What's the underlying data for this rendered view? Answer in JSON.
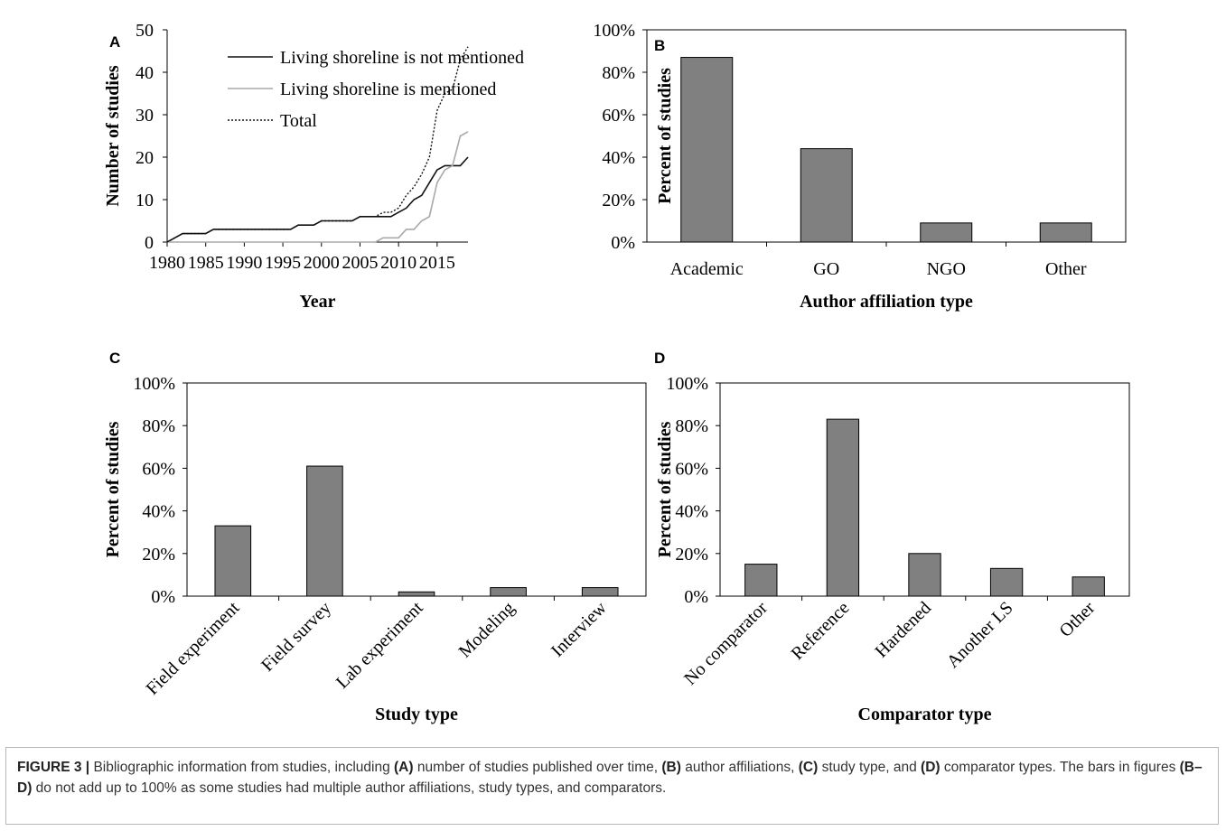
{
  "chart_data": [
    {
      "type": "line",
      "panel_letter": "A",
      "xlabel": "Year",
      "ylabel": "Number of studies",
      "xlim": [
        1980,
        2019
      ],
      "ylim": [
        0,
        50
      ],
      "xticks": [
        "1980",
        "1985",
        "1990",
        "1995",
        "2000",
        "2005",
        "2010",
        "2015"
      ],
      "yticks": [
        "0",
        "10",
        "20",
        "30",
        "40",
        "50"
      ],
      "legend_position": "top-left",
      "series": [
        {
          "name": "Living shoreline is not mentioned",
          "style": "solid-black",
          "points": [
            [
              1980,
              0
            ],
            [
              1981,
              1
            ],
            [
              1982,
              2
            ],
            [
              1983,
              2
            ],
            [
              1984,
              2
            ],
            [
              1985,
              2
            ],
            [
              1986,
              3
            ],
            [
              1987,
              3
            ],
            [
              1988,
              3
            ],
            [
              1989,
              3
            ],
            [
              1990,
              3
            ],
            [
              1991,
              3
            ],
            [
              1992,
              3
            ],
            [
              1993,
              3
            ],
            [
              1994,
              3
            ],
            [
              1995,
              3
            ],
            [
              1996,
              3
            ],
            [
              1997,
              4
            ],
            [
              1998,
              4
            ],
            [
              1999,
              4
            ],
            [
              2000,
              5
            ],
            [
              2001,
              5
            ],
            [
              2002,
              5
            ],
            [
              2003,
              5
            ],
            [
              2004,
              5
            ],
            [
              2005,
              6
            ],
            [
              2006,
              6
            ],
            [
              2007,
              6
            ],
            [
              2008,
              6
            ],
            [
              2009,
              6
            ],
            [
              2010,
              7
            ],
            [
              2011,
              8
            ],
            [
              2012,
              10
            ],
            [
              2013,
              11
            ],
            [
              2014,
              14
            ],
            [
              2015,
              17
            ],
            [
              2016,
              18
            ],
            [
              2017,
              18
            ],
            [
              2018,
              18
            ],
            [
              2019,
              20
            ]
          ]
        },
        {
          "name": "Living shoreline is mentioned",
          "style": "solid-gray",
          "points": [
            [
              1980,
              0
            ],
            [
              2007,
              0
            ],
            [
              2008,
              1
            ],
            [
              2009,
              1
            ],
            [
              2010,
              1
            ],
            [
              2011,
              3
            ],
            [
              2012,
              3
            ],
            [
              2013,
              5
            ],
            [
              2014,
              6
            ],
            [
              2015,
              14
            ],
            [
              2016,
              17
            ],
            [
              2017,
              18
            ],
            [
              2018,
              25
            ],
            [
              2019,
              26
            ]
          ]
        },
        {
          "name": "Total",
          "style": "dotted-black",
          "points": [
            [
              1980,
              0
            ],
            [
              1981,
              1
            ],
            [
              1982,
              2
            ],
            [
              1983,
              2
            ],
            [
              1984,
              2
            ],
            [
              1985,
              2
            ],
            [
              1986,
              3
            ],
            [
              1987,
              3
            ],
            [
              1988,
              3
            ],
            [
              1989,
              3
            ],
            [
              1990,
              3
            ],
            [
              1991,
              3
            ],
            [
              1992,
              3
            ],
            [
              1993,
              3
            ],
            [
              1994,
              3
            ],
            [
              1995,
              3
            ],
            [
              1996,
              3
            ],
            [
              1997,
              4
            ],
            [
              1998,
              4
            ],
            [
              1999,
              4
            ],
            [
              2000,
              5
            ],
            [
              2001,
              5
            ],
            [
              2002,
              5
            ],
            [
              2003,
              5
            ],
            [
              2004,
              5
            ],
            [
              2005,
              6
            ],
            [
              2006,
              6
            ],
            [
              2007,
              6
            ],
            [
              2008,
              7
            ],
            [
              2009,
              7
            ],
            [
              2010,
              8
            ],
            [
              2011,
              11
            ],
            [
              2012,
              13
            ],
            [
              2013,
              16
            ],
            [
              2014,
              20
            ],
            [
              2015,
              31
            ],
            [
              2016,
              35
            ],
            [
              2017,
              36
            ],
            [
              2018,
              43
            ],
            [
              2019,
              46
            ]
          ]
        }
      ]
    },
    {
      "type": "bar",
      "panel_letter": "B",
      "xlabel": "Author affiliation type",
      "ylabel": "Percent of studies",
      "ylim": [
        0,
        100
      ],
      "yticks": [
        "0%",
        "20%",
        "40%",
        "60%",
        "80%",
        "100%"
      ],
      "categories": [
        "Academic",
        "GO",
        "NGO",
        "Other"
      ],
      "values": [
        87,
        44,
        9,
        9
      ],
      "bar_color": "#808080"
    },
    {
      "type": "bar",
      "panel_letter": "C",
      "xlabel": "Study type",
      "ylabel": "Percent of studies",
      "ylim": [
        0,
        100
      ],
      "yticks": [
        "0%",
        "20%",
        "40%",
        "60%",
        "80%",
        "100%"
      ],
      "categories": [
        "Field experiment",
        "Field survey",
        "Lab experiment",
        "Modeling",
        "Interview"
      ],
      "values": [
        33,
        61,
        2,
        4,
        4
      ],
      "bar_color": "#808080"
    },
    {
      "type": "bar",
      "panel_letter": "D",
      "xlabel": "Comparator type",
      "ylabel": "Percent of studies",
      "ylim": [
        0,
        100
      ],
      "yticks": [
        "0%",
        "20%",
        "40%",
        "60%",
        "80%",
        "100%"
      ],
      "categories": [
        "No comparator",
        "Reference",
        "Hardened",
        "Another LS",
        "Other"
      ],
      "values": [
        15,
        83,
        20,
        13,
        9
      ],
      "bar_color": "#808080"
    }
  ],
  "caption": {
    "label": "FIGURE 3 |",
    "parts": [
      {
        "t": " Bibliographic information from studies, including ",
        "b": false
      },
      {
        "t": "(A)",
        "b": true
      },
      {
        "t": " number of studies published over time, ",
        "b": false
      },
      {
        "t": "(B)",
        "b": true
      },
      {
        "t": " author affiliations, ",
        "b": false
      },
      {
        "t": "(C)",
        "b": true
      },
      {
        "t": " study type, and ",
        "b": false
      },
      {
        "t": "(D)",
        "b": true
      },
      {
        "t": " comparator types. The bars in figures ",
        "b": false
      },
      {
        "t": "(B–D)",
        "b": true
      },
      {
        "t": " do not add up to 100% as some studies had multiple author affiliations, study types, and comparators.",
        "b": false
      }
    ]
  }
}
